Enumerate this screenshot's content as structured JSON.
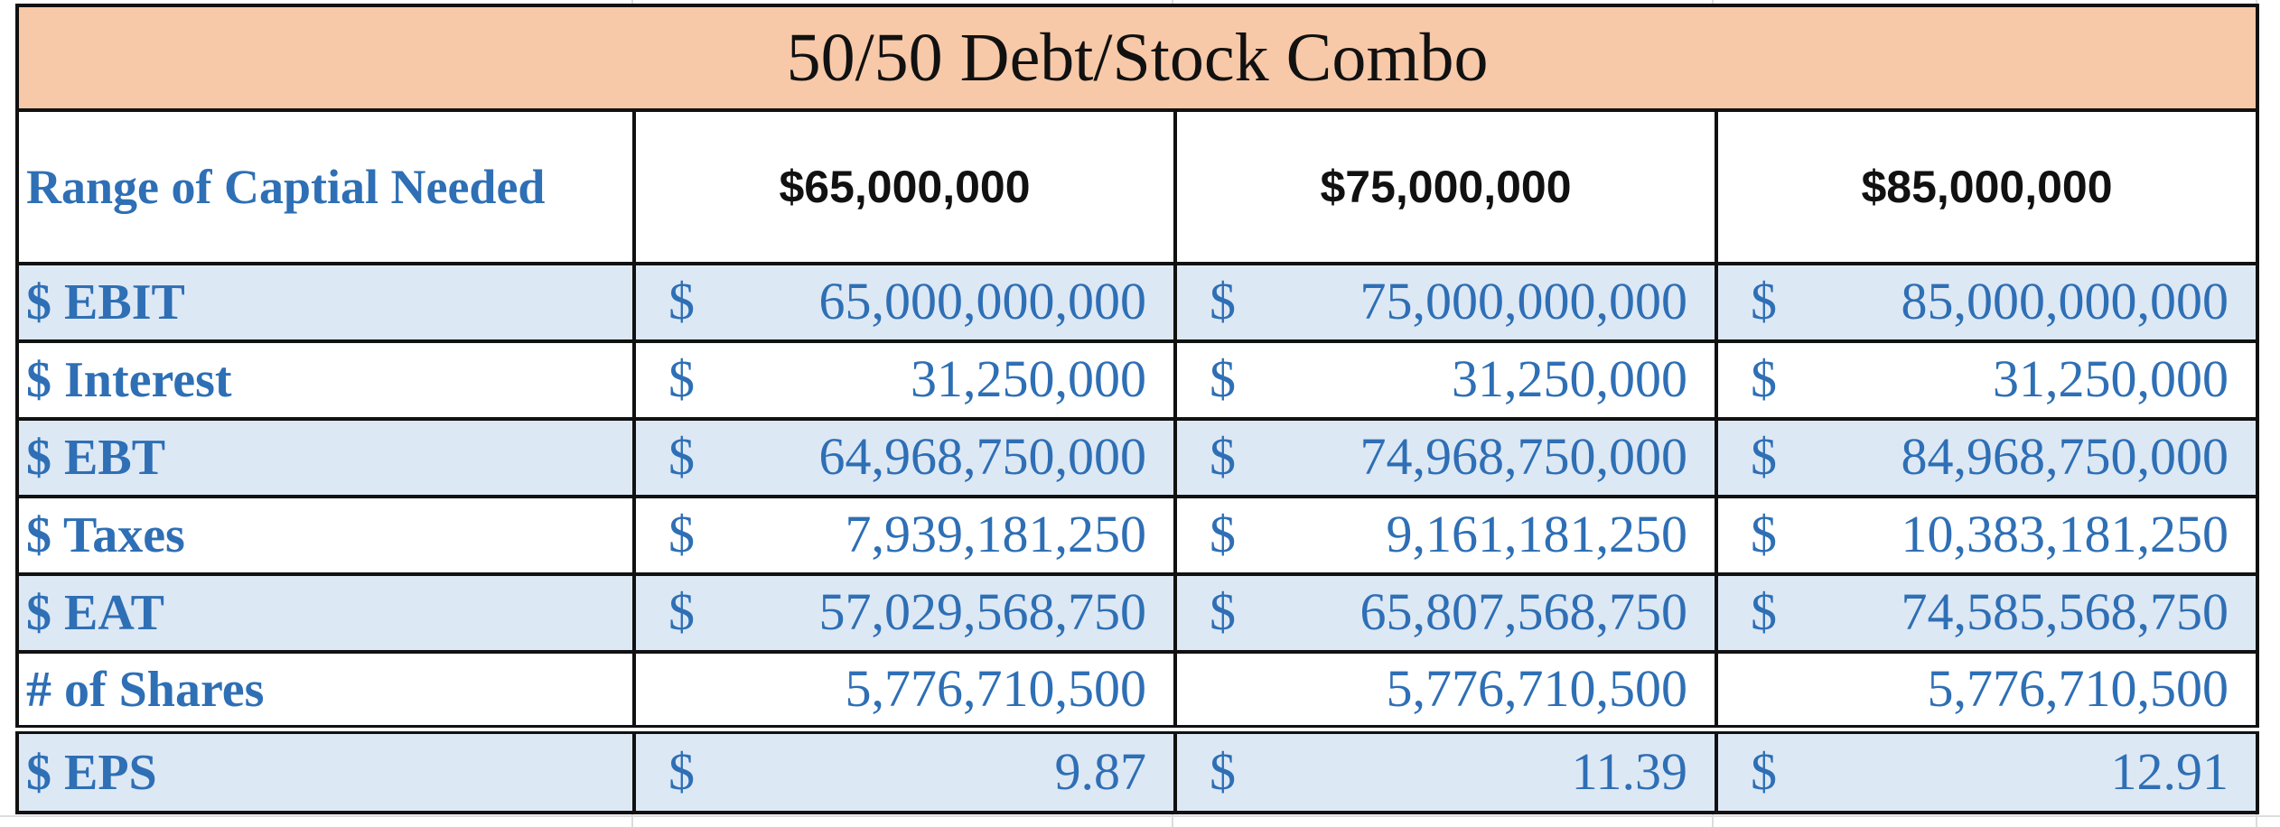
{
  "title": "50/50 Debt/Stock Combo",
  "capital": {
    "label": "Range of Captial Needed",
    "amounts": [
      "$65,000,000",
      "$75,000,000",
      "$85,000,000"
    ]
  },
  "rows": [
    {
      "label": "$ EBIT",
      "shaded": true,
      "cells": [
        {
          "currency": "$",
          "value": "65,000,000,000"
        },
        {
          "currency": "$",
          "value": "75,000,000,000"
        },
        {
          "currency": "$",
          "value": "85,000,000,000"
        }
      ]
    },
    {
      "label": "$ Interest",
      "shaded": false,
      "cells": [
        {
          "currency": "$",
          "value": "31,250,000"
        },
        {
          "currency": "$",
          "value": "31,250,000"
        },
        {
          "currency": "$",
          "value": "31,250,000"
        }
      ]
    },
    {
      "label": "$ EBT",
      "shaded": true,
      "cells": [
        {
          "currency": "$",
          "value": "64,968,750,000"
        },
        {
          "currency": "$",
          "value": "74,968,750,000"
        },
        {
          "currency": "$",
          "value": "84,968,750,000"
        }
      ]
    },
    {
      "label": "$ Taxes",
      "shaded": false,
      "cells": [
        {
          "currency": "$",
          "value": "7,939,181,250"
        },
        {
          "currency": "$",
          "value": "9,161,181,250"
        },
        {
          "currency": "$",
          "value": "10,383,181,250"
        }
      ]
    },
    {
      "label": "$ EAT",
      "shaded": true,
      "cells": [
        {
          "currency": "$",
          "value": "57,029,568,750"
        },
        {
          "currency": "$",
          "value": "65,807,568,750"
        },
        {
          "currency": "$",
          "value": "74,585,568,750"
        }
      ]
    },
    {
      "label": "# of Shares",
      "shaded": false,
      "cells": [
        {
          "currency": "",
          "value": "5,776,710,500"
        },
        {
          "currency": "",
          "value": "5,776,710,500"
        },
        {
          "currency": "",
          "value": "5,776,710,500"
        }
      ]
    },
    {
      "label": "$ EPS",
      "shaded": true,
      "cells": [
        {
          "currency": "$",
          "value": "9.87"
        },
        {
          "currency": "$",
          "value": "11.39"
        },
        {
          "currency": "$",
          "value": "12.91"
        }
      ]
    }
  ],
  "colors": {
    "title_fill": "#f8c9a8",
    "label_text": "#2e6fb5",
    "row_shade": "#dde8f5",
    "border": "#111111"
  }
}
